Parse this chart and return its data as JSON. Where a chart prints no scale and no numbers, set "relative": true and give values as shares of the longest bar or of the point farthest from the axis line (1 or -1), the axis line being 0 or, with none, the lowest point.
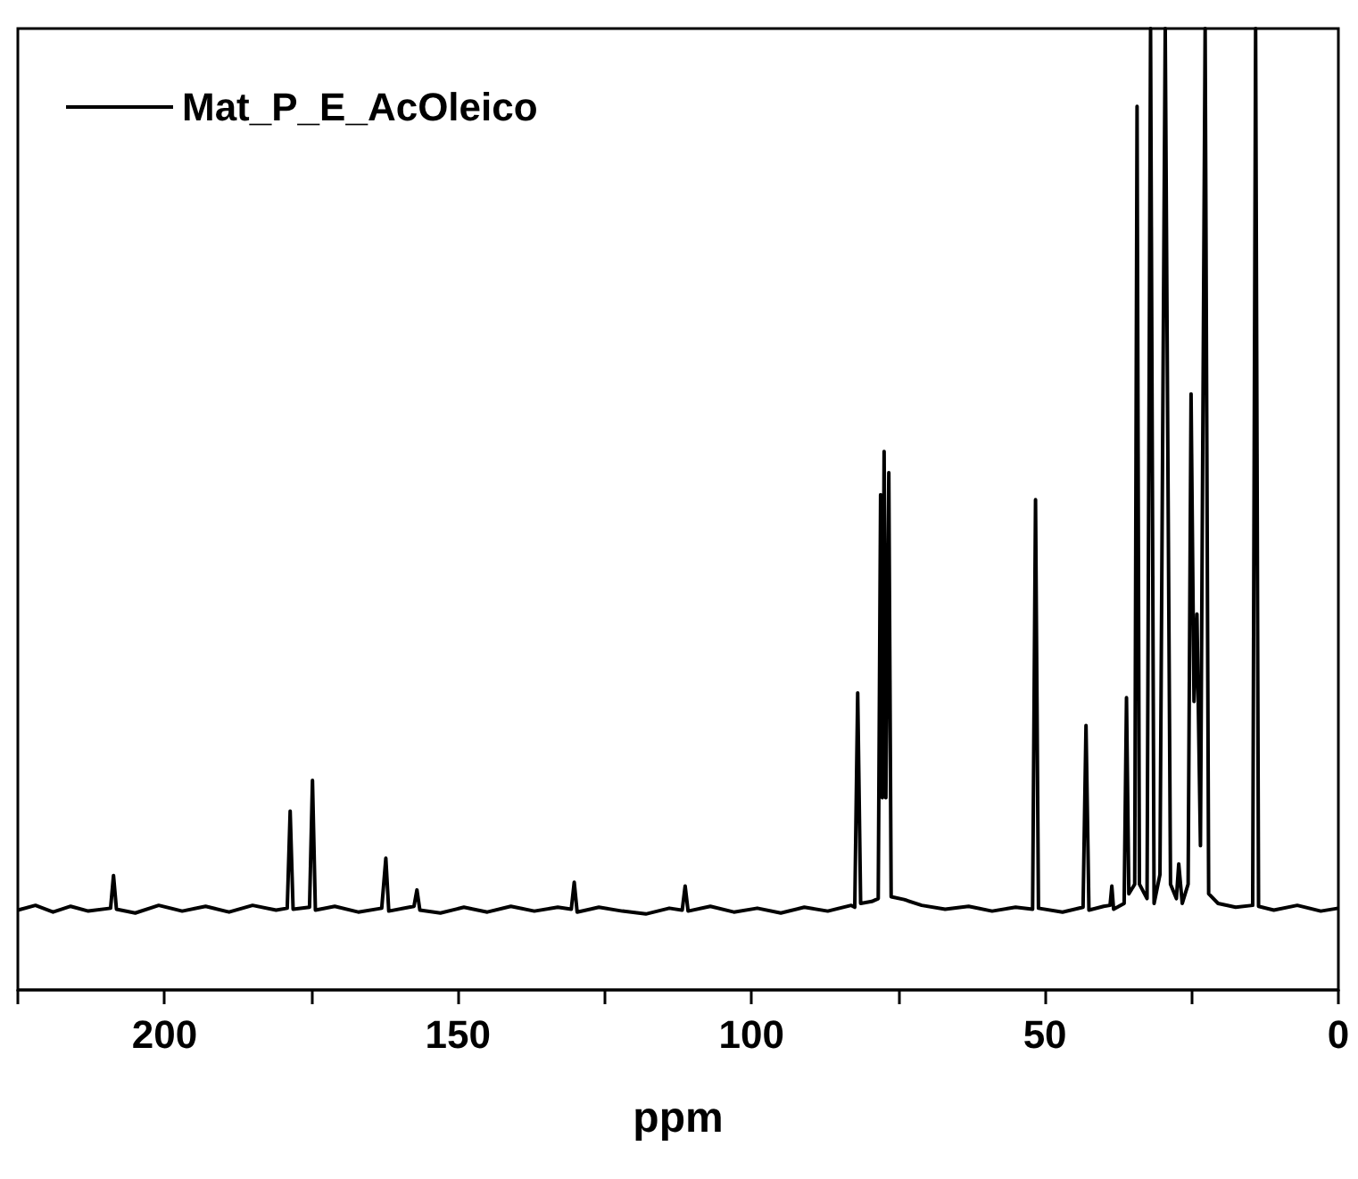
{
  "chart_data": {
    "type": "line",
    "xlabel": "ppm",
    "relative": true,
    "legend": "top left",
    "marker": "none",
    "line_style": "solid",
    "grid": false,
    "xlim": [
      225,
      0
    ],
    "xticks": [
      {
        "value": 225,
        "label": null
      },
      200,
      {
        "value": 175,
        "label": null
      },
      150,
      {
        "value": 125,
        "label": null
      },
      100,
      {
        "value": 75,
        "label": null
      },
      50,
      {
        "value": 25,
        "label": null
      },
      0
    ],
    "series": [
      {
        "name": "Mat_P_E_AcOleico",
        "color": "#000000",
        "x": [
          225,
          222,
          219,
          216,
          213,
          209.2,
          208.7,
          208.2,
          205,
          201,
          197,
          193,
          189,
          185,
          181,
          179.1,
          178.6,
          178.1,
          175.3,
          174.8,
          174.3,
          171,
          167,
          163,
          162.3,
          161.8,
          157.5,
          157,
          156.5,
          153,
          149,
          145,
          141,
          137,
          133,
          130.7,
          130.2,
          129.7,
          126,
          122,
          118,
          114,
          111.8,
          111.3,
          110.8,
          107,
          103,
          99,
          95,
          91,
          87,
          83,
          82.4,
          81.9,
          81.4,
          79.5,
          78.4,
          78.0,
          77.7,
          77.4,
          77.1,
          76.6,
          76.2,
          74,
          71,
          67,
          63,
          59,
          55,
          52.1,
          51.6,
          51.1,
          47,
          43.5,
          43.0,
          42.5,
          40,
          38.9,
          38.6,
          38.3,
          36.5,
          36.1,
          35.7,
          34.7,
          34.3,
          33.9,
          32.6,
          32.0,
          31.4,
          30.4,
          29.5,
          28.6,
          27.6,
          27.2,
          26.6,
          25.6,
          25.1,
          24.6,
          24.1,
          23.5,
          22.7,
          22.1,
          20.5,
          17.5,
          14.6,
          14.1,
          13.6,
          11,
          7,
          3,
          0
        ],
        "values": [
          0.083,
          0.088,
          0.081,
          0.087,
          0.082,
          0.085,
          0.119,
          0.084,
          0.08,
          0.088,
          0.082,
          0.087,
          0.081,
          0.088,
          0.083,
          0.085,
          0.186,
          0.084,
          0.086,
          0.218,
          0.083,
          0.087,
          0.081,
          0.085,
          0.137,
          0.082,
          0.087,
          0.104,
          0.083,
          0.08,
          0.086,
          0.081,
          0.087,
          0.082,
          0.086,
          0.084,
          0.112,
          0.081,
          0.086,
          0.082,
          0.079,
          0.085,
          0.083,
          0.108,
          0.082,
          0.087,
          0.081,
          0.085,
          0.08,
          0.086,
          0.082,
          0.088,
          0.086,
          0.309,
          0.09,
          0.092,
          0.095,
          0.515,
          0.2,
          0.56,
          0.2,
          0.538,
          0.097,
          0.094,
          0.088,
          0.084,
          0.087,
          0.082,
          0.086,
          0.084,
          0.51,
          0.085,
          0.081,
          0.086,
          0.275,
          0.083,
          0.087,
          0.088,
          0.108,
          0.084,
          0.09,
          0.304,
          0.1,
          0.11,
          0.919,
          0.11,
          0.095,
          1,
          0.09,
          0.12,
          1,
          0.11,
          0.095,
          0.131,
          0.09,
          0.11,
          0.62,
          0.3,
          0.391,
          0.15,
          1,
          0.1,
          0.09,
          0.086,
          0.088,
          1,
          0.087,
          0.083,
          0.088,
          0.082,
          0.085
        ]
      }
    ]
  }
}
